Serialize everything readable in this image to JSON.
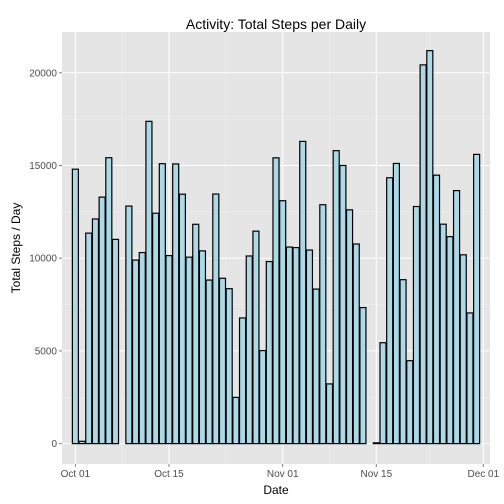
{
  "chart_data": {
    "type": "bar",
    "title": "Activity: Total Steps per Daily",
    "xlabel": "Date",
    "ylabel": "Total Steps / Day",
    "ylim": [
      -1100,
      22200
    ],
    "xlim": [
      "2012-09-29",
      "2012-12-02"
    ],
    "y_ticks": [
      0,
      5000,
      10000,
      15000,
      20000
    ],
    "x_ticks": [
      {
        "date": "2012-10-01",
        "label": "Oct 01"
      },
      {
        "date": "2012-10-15",
        "label": "Oct 15"
      },
      {
        "date": "2012-11-01",
        "label": "Nov 01"
      },
      {
        "date": "2012-11-15",
        "label": "Nov 15"
      },
      {
        "date": "2012-12-01",
        "label": "Dec 01"
      }
    ],
    "grid": true,
    "colors": {
      "panel": "#e5e5e5",
      "grid_major": "#ffffff",
      "grid_minor": "#f2f2f2",
      "bar_fill": "#add8e6",
      "bar_outline": "#000000"
    },
    "x": [
      "2012-10-01",
      "2012-10-02",
      "2012-10-03",
      "2012-10-04",
      "2012-10-05",
      "2012-10-06",
      "2012-10-07",
      "2012-10-08",
      "2012-10-09",
      "2012-10-10",
      "2012-10-11",
      "2012-10-12",
      "2012-10-13",
      "2012-10-14",
      "2012-10-15",
      "2012-10-16",
      "2012-10-17",
      "2012-10-18",
      "2012-10-19",
      "2012-10-20",
      "2012-10-21",
      "2012-10-22",
      "2012-10-23",
      "2012-10-24",
      "2012-10-25",
      "2012-10-26",
      "2012-10-27",
      "2012-10-28",
      "2012-10-29",
      "2012-10-30",
      "2012-10-31",
      "2012-11-01",
      "2012-11-02",
      "2012-11-03",
      "2012-11-04",
      "2012-11-05",
      "2012-11-06",
      "2012-11-07",
      "2012-11-08",
      "2012-11-09",
      "2012-11-10",
      "2012-11-11",
      "2012-11-12",
      "2012-11-13",
      "2012-11-14",
      "2012-11-15",
      "2012-11-16",
      "2012-11-17",
      "2012-11-18",
      "2012-11-19",
      "2012-11-20",
      "2012-11-21",
      "2012-11-22",
      "2012-11-23",
      "2012-11-24",
      "2012-11-25",
      "2012-11-26",
      "2012-11-27",
      "2012-11-28",
      "2012-11-29",
      "2012-11-30"
    ],
    "values": [
      14800,
      126,
      11352,
      12116,
      13294,
      15420,
      11015,
      0,
      12811,
      9900,
      10304,
      17382,
      12426,
      15098,
      10139,
      15084,
      13452,
      10056,
      11829,
      10395,
      8821,
      13460,
      8918,
      8355,
      2492,
      6778,
      10119,
      11458,
      5018,
      9819,
      15414,
      13100,
      10600,
      10571,
      16300,
      10439,
      8334,
      12883,
      3219,
      15800,
      15000,
      12608,
      10765,
      7336,
      0,
      41,
      5441,
      14339,
      15110,
      8841,
      4472,
      12787,
      20427,
      21194,
      14478,
      11834,
      11162,
      13646,
      10183,
      7047,
      15600
    ]
  }
}
